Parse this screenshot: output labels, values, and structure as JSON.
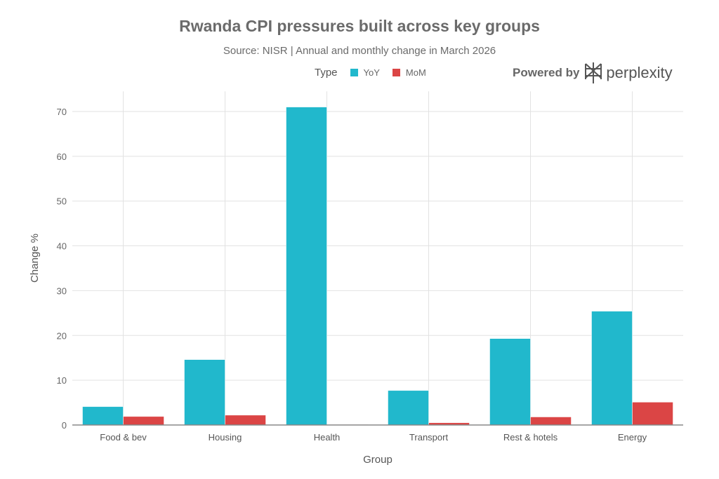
{
  "chart_data": {
    "type": "bar",
    "title": "Rwanda CPI pressures built across key groups",
    "subtitle": "Source: NISR | Annual and monthly change in March 2026",
    "xlabel": "Group",
    "ylabel": "Change %",
    "categories": [
      "Food & bev",
      "Housing",
      "Health",
      "Transport",
      "Rest & hotels",
      "Energy"
    ],
    "series": [
      {
        "name": "YoY",
        "color": "#21b8cc",
        "values": [
          4.1,
          14.6,
          71.0,
          7.7,
          19.3,
          25.4
        ]
      },
      {
        "name": "MoM",
        "color": "#db4545",
        "values": [
          1.9,
          2.2,
          0.1,
          0.5,
          1.8,
          5.1
        ]
      }
    ],
    "ylim": [
      0,
      74.5
    ],
    "yticks": [
      0,
      10,
      20,
      30,
      40,
      50,
      60,
      70
    ],
    "grid": true,
    "legend_title": "Type",
    "legend_position": "top"
  },
  "branding": {
    "prefix": "Powered by",
    "name": "perplexity"
  }
}
